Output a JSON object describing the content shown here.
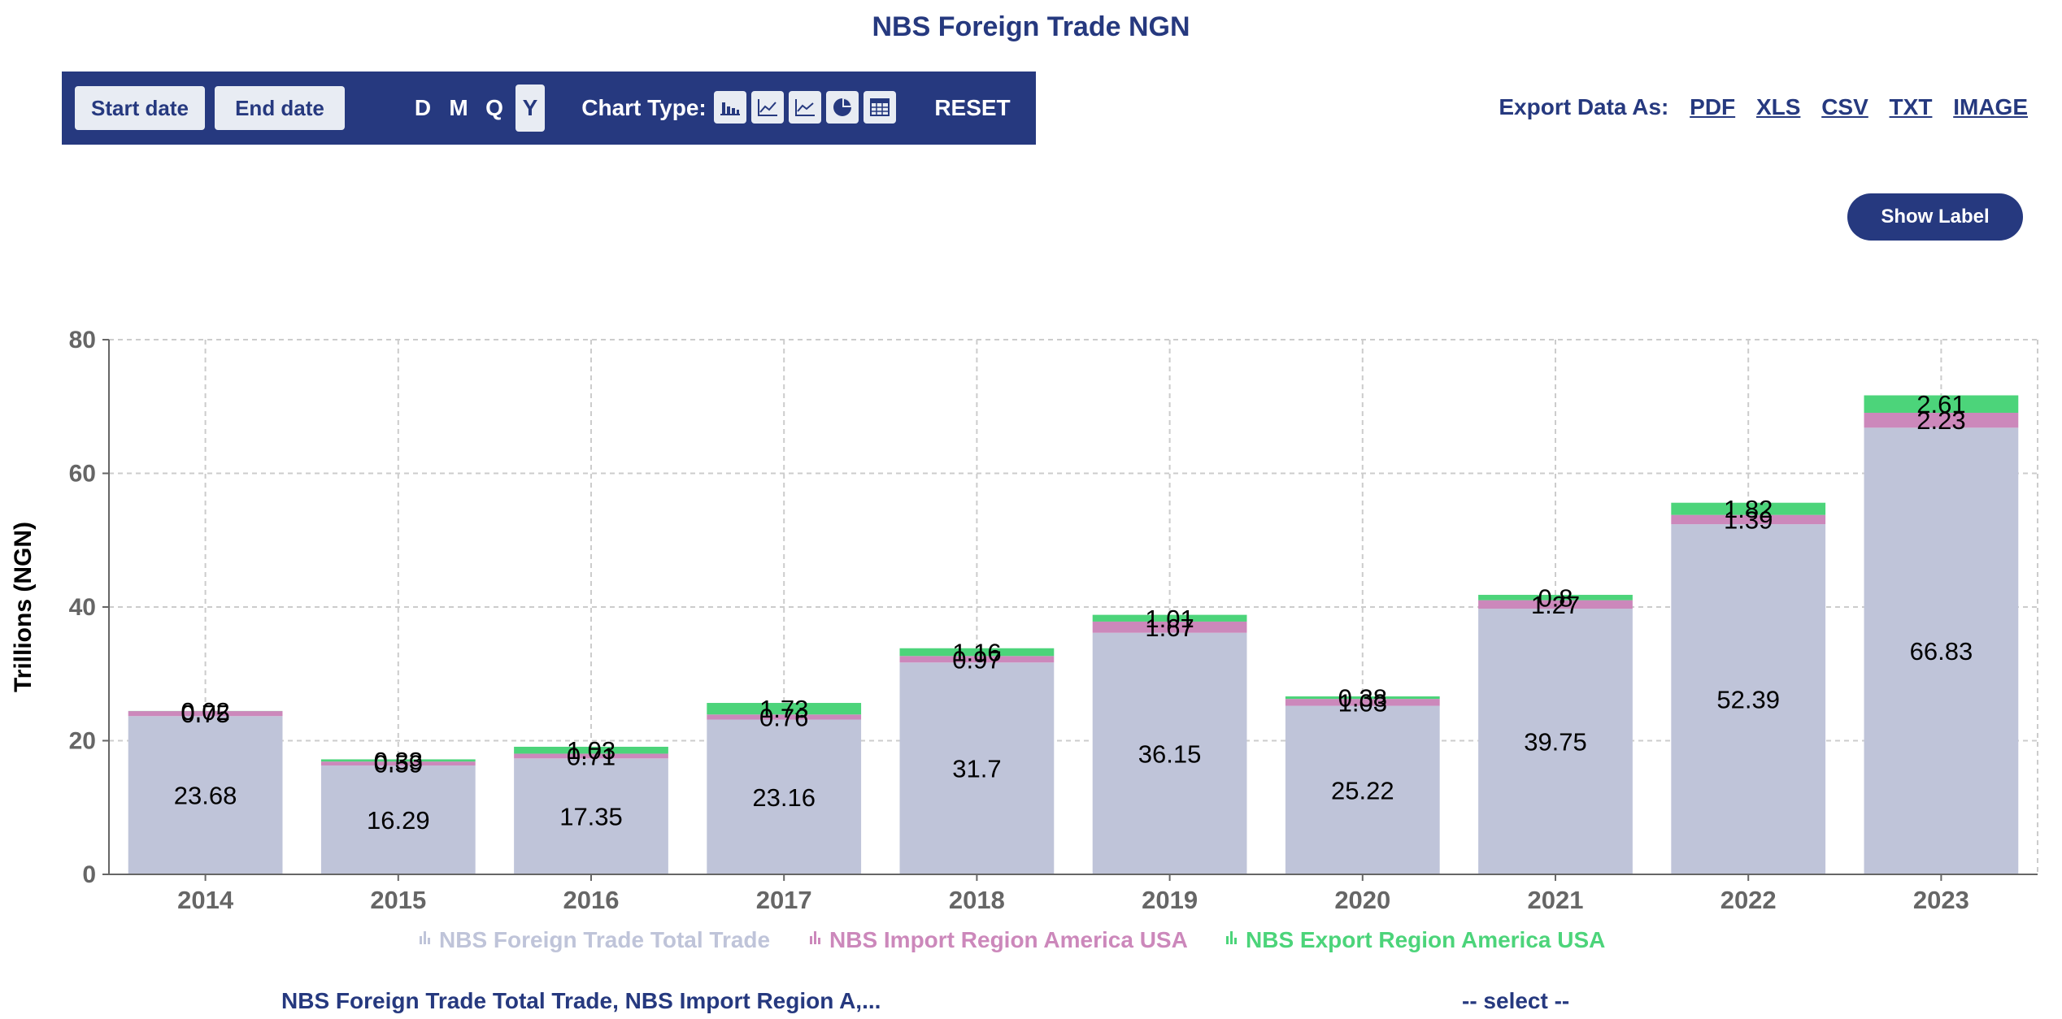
{
  "header": {
    "title": "NBS Foreign Trade NGN"
  },
  "toolbar": {
    "start_date": "Start date",
    "end_date": "End date",
    "periods": [
      "D",
      "M",
      "Q",
      "Y"
    ],
    "selected_period": "Y",
    "chart_type_label": "Chart Type:",
    "chart_type_icons": [
      "bar-chart-icon",
      "line-chart-icon",
      "area-chart-icon",
      "pie-chart-icon",
      "table-icon"
    ],
    "reset": "RESET"
  },
  "export": {
    "label": "Export Data As:",
    "formats": [
      "PDF",
      "XLS",
      "CSV",
      "TXT",
      "IMAGE"
    ]
  },
  "show_label": "Show Label",
  "footer": {
    "series_selection": "NBS Foreign Trade Total Trade, NBS Import Region A,...",
    "select_placeholder": "-- select --"
  },
  "colors": {
    "brand": "#26397f",
    "total_trade": "#bfc4d9",
    "import_usa": "#cc88bb",
    "export_usa": "#4cd47a"
  },
  "chart_data": {
    "type": "bar",
    "stacked": true,
    "categories": [
      "2014",
      "2015",
      "2016",
      "2017",
      "2018",
      "2019",
      "2020",
      "2021",
      "2022",
      "2023"
    ],
    "ylabel": "Trillions (NGN)",
    "ylim": [
      0,
      80
    ],
    "yticks": [
      0,
      20,
      40,
      60,
      80
    ],
    "grid": true,
    "legend_position": "bottom",
    "data_labels": true,
    "series": [
      {
        "name": "NBS Foreign Trade Total Trade",
        "color": "#bfc4d9",
        "values": [
          23.68,
          16.29,
          17.35,
          23.16,
          31.7,
          36.15,
          25.22,
          39.75,
          52.39,
          66.83
        ]
      },
      {
        "name": "NBS Import Region America USA",
        "color": "#cc88bb",
        "values": [
          0.75,
          0.59,
          0.71,
          0.76,
          0.97,
          1.67,
          1.03,
          1.27,
          1.39,
          2.23
        ]
      },
      {
        "name": "NBS Export Region America USA",
        "color": "#4cd47a",
        "values": [
          0.02,
          0.33,
          1.03,
          1.73,
          1.16,
          1.01,
          0.38,
          0.8,
          1.82,
          2.61
        ]
      }
    ]
  }
}
